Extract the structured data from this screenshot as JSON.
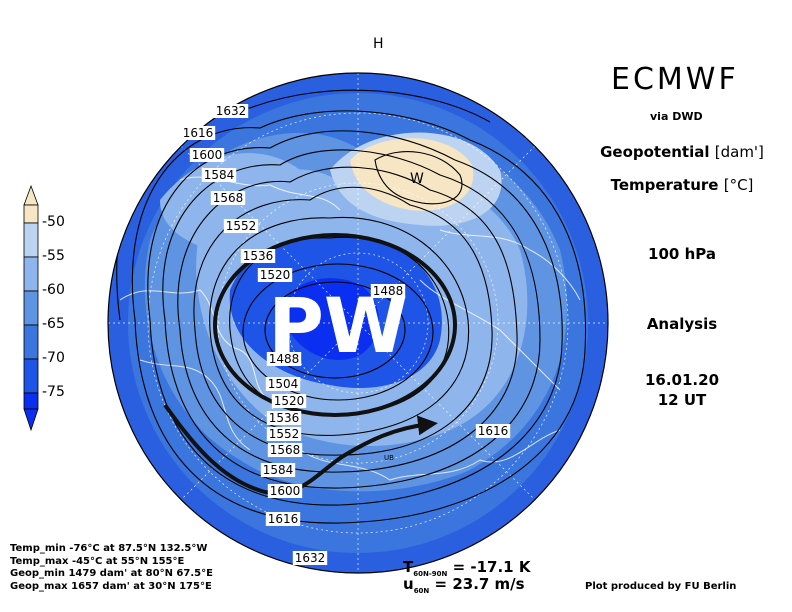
{
  "header": {
    "model": "ECMWF",
    "via": "via DWD",
    "field1_name": "Geopotential",
    "field1_unit": "[dam']",
    "field2_name": "Temperature",
    "field2_unit": "[°C]",
    "level": "100 hPa",
    "type": "Analysis",
    "date": "16.01.20",
    "time": "12 UT"
  },
  "colorbar": {
    "levels": [
      "-50",
      "-55",
      "-60",
      "-65",
      "-70",
      "-75"
    ],
    "colors": [
      "#f6e6c4",
      "#bdd3f2",
      "#8fb6ec",
      "#5e94e2",
      "#3a76de",
      "#1f55e6",
      "#0a2ff0"
    ]
  },
  "map": {
    "contour_labels": [
      "1632",
      "1616",
      "1600",
      "1584",
      "1568",
      "1552",
      "1536",
      "1520",
      "1488",
      "1488",
      "1504",
      "1520",
      "1536",
      "1552",
      "1568",
      "1584",
      "1600",
      "1616",
      "1616",
      "1632"
    ],
    "high_label": "H",
    "warm_label": "W",
    "overlay_text": "PW",
    "small_label": "UB"
  },
  "stats": {
    "temp_min": "Temp_min -76°C at 87.5°N 132.5°W",
    "temp_max": "Temp_max -45°C at 55°N 155°E",
    "geop_min": "Geop_min 1479 dam' at 80°N 67.5°E",
    "geop_max": "Geop_max 1657 dam' at 30°N 175°E"
  },
  "bottom": {
    "t_label": "T",
    "t_sub": "60N-90N",
    "t_value": "= -17.1 K",
    "u_label": "u",
    "u_sub": "60N",
    "u_value": "= 23.7 m/s",
    "credit": "Plot produced by FU Berlin"
  }
}
